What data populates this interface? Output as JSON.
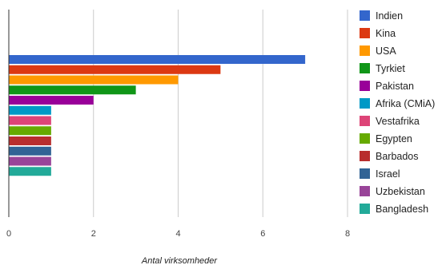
{
  "chart_data": {
    "type": "bar",
    "orientation": "horizontal",
    "title": "",
    "xlabel": "Antal virksomheder",
    "ylabel": "",
    "xlim": [
      0,
      8
    ],
    "xticks": [
      0,
      2,
      4,
      6,
      8
    ],
    "grid": true,
    "legend_position": "right",
    "series": [
      {
        "name": "Indien",
        "value": 7,
        "color": "#3366cc"
      },
      {
        "name": "Kina",
        "value": 5,
        "color": "#dc3912"
      },
      {
        "name": "USA",
        "value": 4,
        "color": "#ff9900"
      },
      {
        "name": "Tyrkiet",
        "value": 3,
        "color": "#109618"
      },
      {
        "name": "Pakistan",
        "value": 2,
        "color": "#990099"
      },
      {
        "name": "Afrika (CMiA)",
        "value": 1,
        "color": "#0099c6"
      },
      {
        "name": "Vestafrika",
        "value": 1,
        "color": "#dd4477"
      },
      {
        "name": "Egypten",
        "value": 1,
        "color": "#66aa00"
      },
      {
        "name": "Barbados",
        "value": 1,
        "color": "#b82e2e"
      },
      {
        "name": "Israel",
        "value": 1,
        "color": "#316395"
      },
      {
        "name": "Uzbekistan",
        "value": 1,
        "color": "#994499"
      },
      {
        "name": "Bangladesh",
        "value": 1,
        "color": "#22aa99"
      }
    ]
  }
}
